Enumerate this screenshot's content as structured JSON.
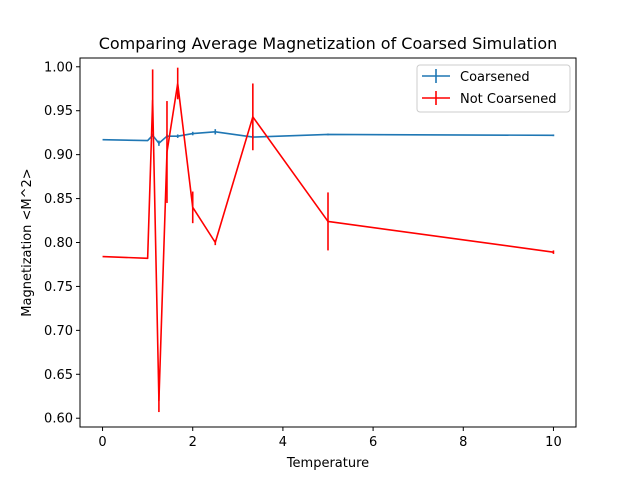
{
  "chart_data": {
    "type": "line",
    "title": "Comparing Average Magnetization of Coarsed Simulation",
    "xlabel": "Temperature",
    "ylabel": "Magnetization <M^2>",
    "xlim": [
      -0.5,
      10.5
    ],
    "ylim": [
      0.59,
      1.01
    ],
    "xticks": [
      0,
      2,
      4,
      6,
      8,
      10
    ],
    "yticks": [
      0.6,
      0.65,
      0.7,
      0.75,
      0.8,
      0.85,
      0.9,
      0.95,
      1.0
    ],
    "ytick_labels": [
      "0.60",
      "0.65",
      "0.70",
      "0.75",
      "0.80",
      "0.85",
      "0.90",
      "0.95",
      "1.00"
    ],
    "grid": false,
    "legend_position": "top-right",
    "series": [
      {
        "name": "Coarsened",
        "color": "#1f77b4",
        "x": [
          0,
          1,
          1.111,
          1.25,
          1.429,
          1.667,
          2,
          2.5,
          3.333,
          5,
          10
        ],
        "y": [
          0.917,
          0.916,
          0.922,
          0.913,
          0.921,
          0.921,
          0.924,
          0.926,
          0.92,
          0.923,
          0.922
        ],
        "yerr": [
          0.0,
          0.0,
          0.002,
          0.003,
          0.002,
          0.002,
          0.002,
          0.003,
          0.002,
          0.001,
          0.001
        ]
      },
      {
        "name": "Not Coarsened",
        "color": "#ff0000",
        "x": [
          0,
          1,
          1.111,
          1.25,
          1.429,
          1.667,
          2,
          2.5,
          3.333,
          5,
          10
        ],
        "y": [
          0.784,
          0.782,
          0.962,
          0.62,
          0.903,
          0.981,
          0.84,
          0.8,
          0.943,
          0.824,
          0.789
        ],
        "yerr": [
          0.0,
          0.0,
          0.035,
          0.013,
          0.058,
          0.018,
          0.018,
          0.003,
          0.038,
          0.033,
          0.002
        ]
      }
    ]
  }
}
